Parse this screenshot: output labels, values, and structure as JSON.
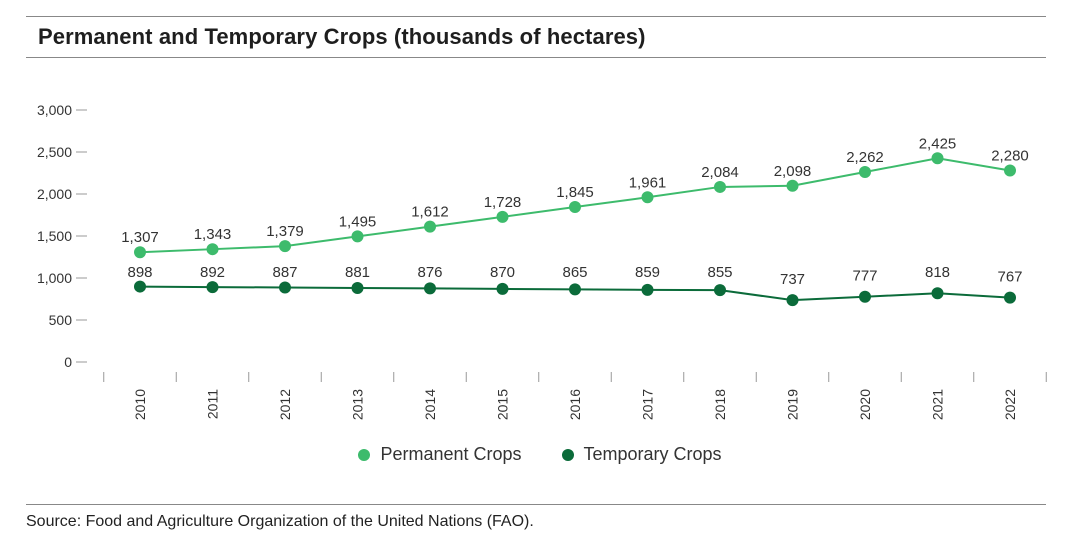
{
  "header": {
    "title": "Permanent and Temporary Crops (thousands of hectares)"
  },
  "footer": {
    "source": "Source: Food and Agriculture Organization of the United Nations (FAO)."
  },
  "colors": {
    "permanent": "#3dbb6c",
    "temporary": "#0b6b3a",
    "axis": "#999999"
  },
  "chart_data": {
    "type": "line",
    "title": "Permanent and Temporary Crops (thousands of hectares)",
    "xlabel": "",
    "ylabel": "",
    "ylim": [
      0,
      3000
    ],
    "yticks": [
      0,
      500,
      1000,
      1500,
      2000,
      2500,
      3000
    ],
    "ytick_labels": [
      "0",
      "500",
      "1,000",
      "1,500",
      "2,000",
      "2,500",
      "3,000"
    ],
    "categories": [
      "2010",
      "2011",
      "2012",
      "2013",
      "2014",
      "2015",
      "2016",
      "2017",
      "2018",
      "2019",
      "2020",
      "2021",
      "2022"
    ],
    "series": [
      {
        "name": "Permanent Crops",
        "values": [
          1307,
          1343,
          1379,
          1495,
          1612,
          1728,
          1845,
          1961,
          2084,
          2098,
          2262,
          2425,
          2280
        ],
        "labels": [
          "1,307",
          "1,343",
          "1,379",
          "1,495",
          "1,612",
          "1,728",
          "1,845",
          "1,961",
          "2,084",
          "2,098",
          "2,262",
          "2,425",
          "2,280"
        ]
      },
      {
        "name": "Temporary Crops",
        "values": [
          898,
          892,
          887,
          881,
          876,
          870,
          865,
          859,
          855,
          737,
          777,
          818,
          767
        ],
        "labels": [
          "898",
          "892",
          "887",
          "881",
          "876",
          "870",
          "865",
          "859",
          "855",
          "737",
          "777",
          "818",
          "767"
        ]
      }
    ],
    "legend_position": "bottom-center"
  },
  "legend": {
    "permanent_label": "Permanent Crops",
    "temporary_label": "Temporary Crops"
  }
}
